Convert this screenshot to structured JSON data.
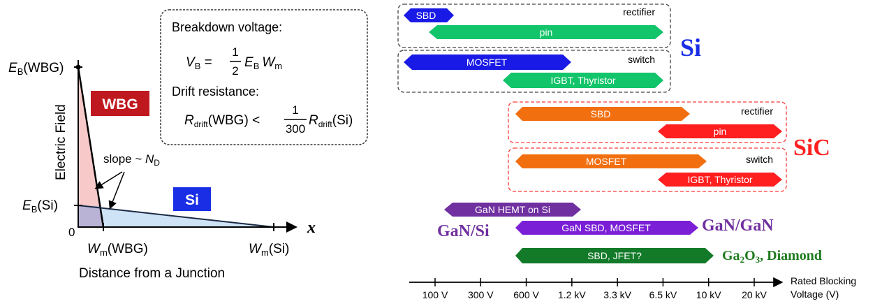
{
  "left_diagram": {
    "y_axis_label": "Electric Field",
    "x_axis_label": "Distance from a Junction",
    "x_axis_symbol": "x",
    "origin_label": "0",
    "eb_wbg": "E",
    "eb_wbg_sub": "B",
    "eb_wbg_suffix": "(WBG)",
    "eb_si": "E",
    "eb_si_sub": "B",
    "eb_si_suffix": "(Si)",
    "wm_wbg": "W",
    "wm_wbg_sub": "m",
    "wm_wbg_suffix": "(WBG)",
    "wm_si": "W",
    "wm_si_sub": "m",
    "wm_si_suffix": "(Si)",
    "wbg_badge": "WBG",
    "si_badge": "Si",
    "slope_label": "slope ~ ",
    "slope_symbol": "N",
    "slope_sub": "D",
    "colors": {
      "wbg_fill": "#f8c9c9",
      "si_fill": "#cfe3f6",
      "wbg_badge": "#c0181f",
      "si_badge": "#1a2ee6"
    }
  },
  "formula_box": {
    "line1": "Breakdown voltage:",
    "vb": "V",
    "vb_sub": "B",
    "eq": " = ",
    "frac1_num": "1",
    "frac1_den": "2",
    "eb": "E",
    "eb_sub": "B",
    "wm": "W",
    "wm_sub": "m",
    "line2": "Drift resistance:",
    "r1": "R",
    "r1_sub": "drift",
    "r1_suffix": "(WBG) < ",
    "frac2_num": "1",
    "frac2_den": "300",
    "r2": "R",
    "r2_sub": "drift",
    "r2_suffix": "(Si)"
  },
  "voltage_axis": {
    "ticks": [
      "100 V",
      "300 V",
      "600 V",
      "1.2 kV",
      "3.3 kV",
      "6.5 kV",
      "10 kV",
      "20 kV"
    ],
    "label_line1": "Rated Blocking",
    "label_line2": "Voltage (V)"
  },
  "groups": [
    {
      "name": "Si-rectifier",
      "label": "rectifier",
      "color": "#444444"
    },
    {
      "name": "Si-switch",
      "label": "switch",
      "color": "#444444"
    },
    {
      "name": "SiC-rectifier",
      "label": "rectifier",
      "color": "#ff3b3b"
    },
    {
      "name": "SiC-switch",
      "label": "switch",
      "color": "#ff3b3b"
    }
  ],
  "materials": [
    {
      "name": "si",
      "label": "Si",
      "color": "#1a2ee6"
    },
    {
      "name": "sic",
      "label": "SiC",
      "color": "#ff1f1f"
    },
    {
      "name": "gan-si",
      "label": "GaN/Si",
      "color": "#7030a0"
    },
    {
      "name": "gan-gan",
      "label": "GaN/GaN",
      "color": "#7030a0"
    },
    {
      "name": "ga2o3",
      "label": "Ga",
      "sub": "2",
      "label2": "O",
      "sub2": "3",
      "label3": ", Diamond",
      "color": "#1d7a1d"
    }
  ],
  "bars": [
    {
      "name": "si-sbd",
      "label": "SBD",
      "color": "#1a1ae6"
    },
    {
      "name": "si-pin",
      "label": "pin",
      "color": "#12c46a"
    },
    {
      "name": "si-mosfet",
      "label": "MOSFET",
      "color": "#1a1ae6"
    },
    {
      "name": "si-igbt",
      "label": "IGBT, Thyristor",
      "color": "#12c46a"
    },
    {
      "name": "sic-sbd",
      "label": "SBD",
      "color": "#f26f10"
    },
    {
      "name": "sic-pin",
      "label": "pin",
      "color": "#ff1f1f"
    },
    {
      "name": "sic-mosfet",
      "label": "MOSFET",
      "color": "#f26f10"
    },
    {
      "name": "sic-igbt",
      "label": "IGBT, Thyristor",
      "color": "#ff1f1f"
    },
    {
      "name": "gan-hemt-si",
      "label": "GaN HEMT on Si",
      "color": "#7030a0"
    },
    {
      "name": "gan-sbd-mosfet",
      "label": "GaN SBD, MOSFET",
      "color": "#7a1fd6"
    },
    {
      "name": "ga2o3-sbd-jfet",
      "label": "SBD, JFET?",
      "color": "#127a28"
    }
  ]
}
